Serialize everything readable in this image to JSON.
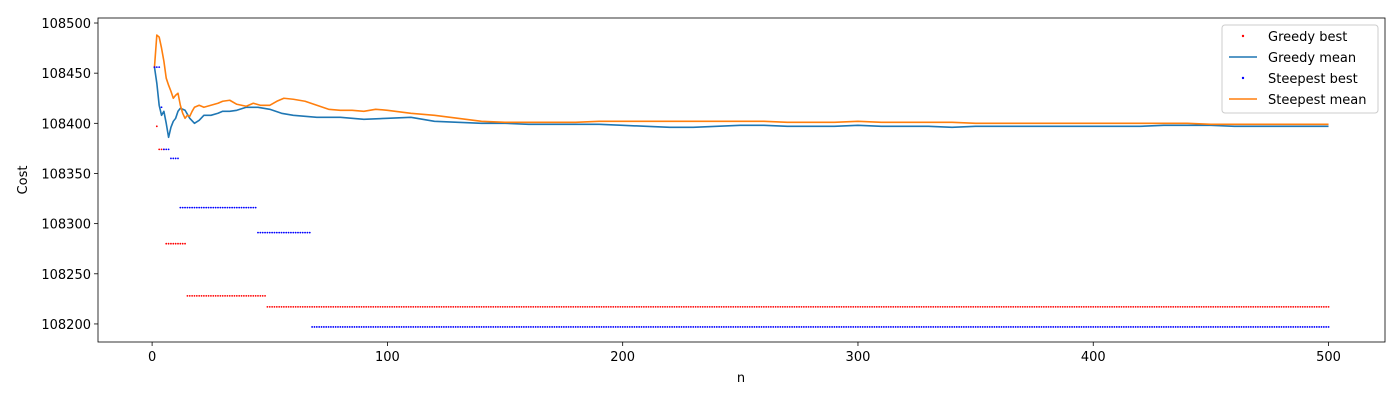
{
  "chart_data": {
    "type": "scatter",
    "title": "",
    "xlabel": "n",
    "ylabel": "Cost",
    "xlim": [
      -23,
      524
    ],
    "ylim": [
      108182,
      108505
    ],
    "xticks": [
      0,
      100,
      200,
      300,
      400,
      500
    ],
    "yticks": [
      108200,
      108250,
      108300,
      108350,
      108400,
      108450,
      108500
    ],
    "grid": false,
    "legend_position": "top-right",
    "series": [
      {
        "name": "Greedy best",
        "style": "points",
        "color": "#ff0000",
        "steps": [
          {
            "from": 1,
            "to": 2,
            "value": 108456
          },
          {
            "from": 2,
            "to": 3,
            "value": 108397
          },
          {
            "from": 3,
            "to": 6,
            "value": 108374
          },
          {
            "from": 6,
            "to": 15,
            "value": 108280
          },
          {
            "from": 15,
            "to": 49,
            "value": 108228
          },
          {
            "from": 49,
            "to": 500,
            "value": 108217
          }
        ]
      },
      {
        "name": "Greedy mean",
        "style": "line",
        "color": "#1f77b4",
        "points": [
          [
            1,
            108456
          ],
          [
            2,
            108440
          ],
          [
            3,
            108418
          ],
          [
            4,
            108408
          ],
          [
            5,
            108412
          ],
          [
            6,
            108400
          ],
          [
            7,
            108386
          ],
          [
            8,
            108396
          ],
          [
            9,
            108402
          ],
          [
            10,
            108405
          ],
          [
            11,
            108412
          ],
          [
            12,
            108415
          ],
          [
            14,
            108413
          ],
          [
            16,
            108405
          ],
          [
            18,
            108400
          ],
          [
            20,
            108403
          ],
          [
            22,
            108408
          ],
          [
            25,
            108408
          ],
          [
            28,
            108410
          ],
          [
            30,
            108412
          ],
          [
            33,
            108412
          ],
          [
            36,
            108413
          ],
          [
            40,
            108416
          ],
          [
            45,
            108416
          ],
          [
            50,
            108414
          ],
          [
            55,
            108410
          ],
          [
            60,
            108408
          ],
          [
            70,
            108406
          ],
          [
            80,
            108406
          ],
          [
            90,
            108404
          ],
          [
            100,
            108405
          ],
          [
            110,
            108406
          ],
          [
            120,
            108402
          ],
          [
            130,
            108401
          ],
          [
            140,
            108400
          ],
          [
            150,
            108400
          ],
          [
            160,
            108399
          ],
          [
            170,
            108399
          ],
          [
            180,
            108399
          ],
          [
            190,
            108399
          ],
          [
            200,
            108398
          ],
          [
            210,
            108397
          ],
          [
            220,
            108396
          ],
          [
            230,
            108396
          ],
          [
            240,
            108397
          ],
          [
            250,
            108398
          ],
          [
            260,
            108398
          ],
          [
            270,
            108397
          ],
          [
            280,
            108397
          ],
          [
            290,
            108397
          ],
          [
            300,
            108398
          ],
          [
            310,
            108397
          ],
          [
            320,
            108397
          ],
          [
            330,
            108397
          ],
          [
            340,
            108396
          ],
          [
            350,
            108397
          ],
          [
            360,
            108397
          ],
          [
            370,
            108397
          ],
          [
            380,
            108397
          ],
          [
            390,
            108397
          ],
          [
            400,
            108397
          ],
          [
            410,
            108397
          ],
          [
            420,
            108397
          ],
          [
            430,
            108398
          ],
          [
            440,
            108398
          ],
          [
            450,
            108398
          ],
          [
            460,
            108397
          ],
          [
            470,
            108397
          ],
          [
            480,
            108397
          ],
          [
            490,
            108397
          ],
          [
            500,
            108397
          ]
        ]
      },
      {
        "name": "Steepest best",
        "style": "points",
        "color": "#0000ff",
        "steps": [
          {
            "from": 1,
            "to": 4,
            "value": 108456
          },
          {
            "from": 4,
            "to": 5,
            "value": 108416
          },
          {
            "from": 5,
            "to": 8,
            "value": 108374
          },
          {
            "from": 8,
            "to": 12,
            "value": 108365
          },
          {
            "from": 12,
            "to": 45,
            "value": 108316
          },
          {
            "from": 45,
            "to": 68,
            "value": 108291
          },
          {
            "from": 68,
            "to": 500,
            "value": 108197
          }
        ]
      },
      {
        "name": "Steepest mean",
        "style": "line",
        "color": "#ff7f0e",
        "points": [
          [
            1,
            108456
          ],
          [
            2,
            108488
          ],
          [
            3,
            108486
          ],
          [
            4,
            108475
          ],
          [
            5,
            108462
          ],
          [
            6,
            108445
          ],
          [
            7,
            108438
          ],
          [
            8,
            108432
          ],
          [
            9,
            108425
          ],
          [
            10,
            108428
          ],
          [
            11,
            108430
          ],
          [
            12,
            108418
          ],
          [
            13,
            108410
          ],
          [
            14,
            108405
          ],
          [
            15,
            108408
          ],
          [
            16,
            108407
          ],
          [
            17,
            108412
          ],
          [
            18,
            108416
          ],
          [
            20,
            108418
          ],
          [
            22,
            108416
          ],
          [
            25,
            108418
          ],
          [
            28,
            108420
          ],
          [
            30,
            108422
          ],
          [
            33,
            108423
          ],
          [
            36,
            108419
          ],
          [
            40,
            108417
          ],
          [
            43,
            108420
          ],
          [
            46,
            108418
          ],
          [
            50,
            108418
          ],
          [
            53,
            108422
          ],
          [
            56,
            108425
          ],
          [
            60,
            108424
          ],
          [
            65,
            108422
          ],
          [
            70,
            108418
          ],
          [
            75,
            108414
          ],
          [
            80,
            108413
          ],
          [
            85,
            108413
          ],
          [
            90,
            108412
          ],
          [
            95,
            108414
          ],
          [
            100,
            108413
          ],
          [
            110,
            108410
          ],
          [
            120,
            108408
          ],
          [
            130,
            108405
          ],
          [
            140,
            108402
          ],
          [
            150,
            108401
          ],
          [
            160,
            108401
          ],
          [
            170,
            108401
          ],
          [
            180,
            108401
          ],
          [
            190,
            108402
          ],
          [
            200,
            108402
          ],
          [
            210,
            108402
          ],
          [
            220,
            108402
          ],
          [
            230,
            108402
          ],
          [
            240,
            108402
          ],
          [
            250,
            108402
          ],
          [
            260,
            108402
          ],
          [
            270,
            108401
          ],
          [
            280,
            108401
          ],
          [
            290,
            108401
          ],
          [
            300,
            108402
          ],
          [
            310,
            108401
          ],
          [
            320,
            108401
          ],
          [
            330,
            108401
          ],
          [
            340,
            108401
          ],
          [
            350,
            108400
          ],
          [
            360,
            108400
          ],
          [
            370,
            108400
          ],
          [
            380,
            108400
          ],
          [
            390,
            108400
          ],
          [
            400,
            108400
          ],
          [
            410,
            108400
          ],
          [
            420,
            108400
          ],
          [
            430,
            108400
          ],
          [
            440,
            108400
          ],
          [
            450,
            108399
          ],
          [
            460,
            108399
          ],
          [
            470,
            108399
          ],
          [
            480,
            108399
          ],
          [
            490,
            108399
          ],
          [
            500,
            108399
          ]
        ]
      }
    ]
  }
}
